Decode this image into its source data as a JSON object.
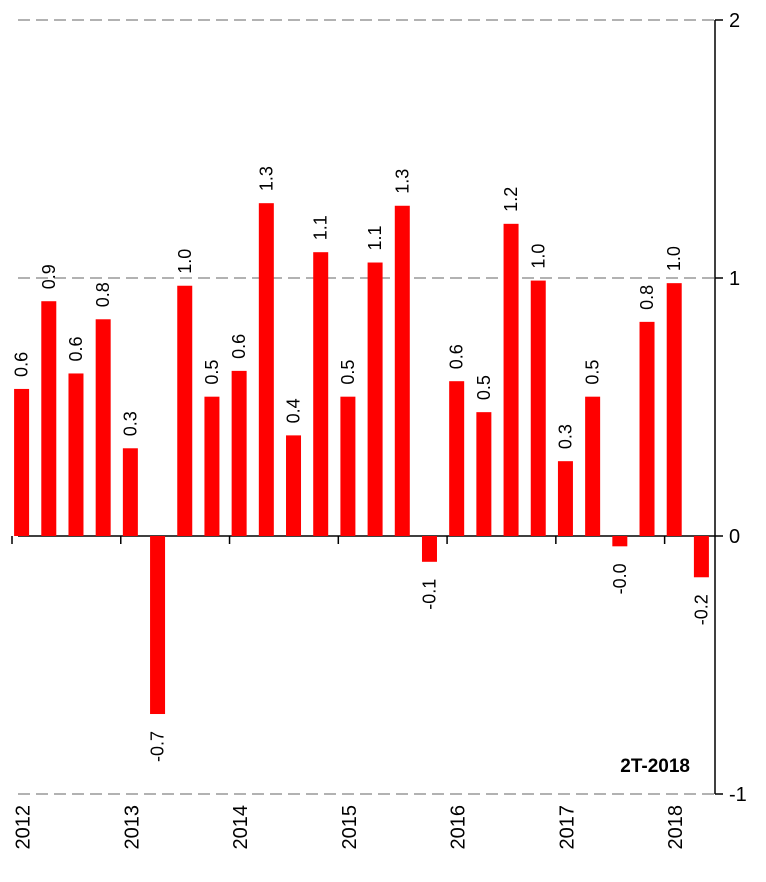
{
  "chart_data": {
    "type": "bar",
    "annotation": "2T-2018",
    "categories": [
      "2012",
      null,
      null,
      null,
      "2013",
      null,
      null,
      null,
      "2014",
      null,
      null,
      null,
      "2015",
      null,
      null,
      null,
      "2016",
      null,
      null,
      null,
      "2017",
      null,
      null,
      null,
      "2018",
      null
    ],
    "values": [
      0.57,
      0.91,
      0.63,
      0.84,
      0.34,
      -0.69,
      0.97,
      0.54,
      0.64,
      1.29,
      0.39,
      1.1,
      0.54,
      1.06,
      1.28,
      -0.1,
      0.6,
      0.48,
      1.21,
      0.99,
      0.29,
      0.54,
      -0.04,
      0.83,
      0.98,
      -0.16
    ],
    "value_labels": [
      "0.6",
      "0.9",
      "0.6",
      "0.8",
      "0.3",
      "-0.7",
      "1.0",
      "0.5",
      "0.6",
      "1.3",
      "0.4",
      "1.1",
      "0.5",
      "1.1",
      "1.3",
      "-0.1",
      "0.6",
      "0.5",
      "1.2",
      "1.0",
      "0.3",
      "0.5",
      "-0.0",
      "0.8",
      "1.0",
      "-0.2"
    ],
    "color": "#ff0000",
    "ylim": [
      -1,
      2
    ],
    "yticks": [
      -1,
      0,
      1,
      2
    ],
    "grid": true
  }
}
